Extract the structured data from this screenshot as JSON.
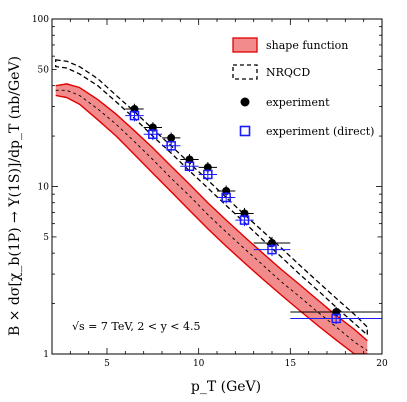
{
  "chart_data": {
    "type": "line",
    "title": "",
    "xlabel": "p_T   (GeV)",
    "ylabel": "B × dσ[χ_b(1P) → Υ(1S)]/dp_T   (nb/GeV)",
    "xlim": [
      2,
      20
    ],
    "ylim": [
      1,
      100
    ],
    "yscale": "log",
    "x_ticks": [
      5,
      10,
      15,
      20
    ],
    "y_ticks": [
      1,
      2,
      5,
      10,
      20,
      50,
      100
    ],
    "y_tick_labels": [
      "1",
      "",
      "5",
      "10",
      "",
      "50",
      "100"
    ],
    "annotation": "√s = 7 TeV, 2 < y < 4.5",
    "legend_position": "top-right",
    "colors": {
      "band_fill": "#f28c8c",
      "band_edge": "#e00000",
      "direct": "#1a1aff",
      "nrqcd": "#000000",
      "experiment": "#000000"
    },
    "series": [
      {
        "name": "shape function",
        "kind": "band",
        "x": [
          2.2,
          2.8,
          3.5,
          4.5,
          5.5,
          6.5,
          7.5,
          8.5,
          9.5,
          10.5,
          11.5,
          12.5,
          13.5,
          14.5,
          15.5,
          16.5,
          17.5,
          18.5,
          19.2
        ],
        "upper": [
          40,
          41,
          39,
          33,
          27,
          21.5,
          17,
          13.2,
          10.3,
          8.0,
          6.3,
          5.0,
          4.0,
          3.2,
          2.6,
          2.1,
          1.7,
          1.4,
          1.2
        ],
        "lower": [
          35,
          34,
          31,
          25,
          20,
          15.5,
          12,
          9.3,
          7.2,
          5.6,
          4.4,
          3.5,
          2.8,
          2.25,
          1.82,
          1.48,
          1.21,
          1.0,
          1.0
        ],
        "center": [
          37.5,
          37.5,
          35,
          29,
          23.5,
          18.5,
          14.5,
          11.2,
          8.8,
          6.8,
          5.35,
          4.25,
          3.4,
          2.7,
          2.2,
          1.78,
          1.45,
          1.18,
          1.05
        ]
      },
      {
        "name": "NRQCD",
        "kind": "dashed-band",
        "x": [
          2.2,
          2.8,
          3.5,
          4.5,
          5.5,
          6.5,
          7.5,
          8.5,
          9.5,
          10.5,
          11.5,
          12.5,
          13.5,
          14.5,
          15.5,
          16.5,
          17.5,
          18.5,
          19.2
        ],
        "upper": [
          57,
          56,
          52,
          44,
          35,
          28,
          22,
          17.5,
          13.8,
          10.9,
          8.6,
          6.8,
          5.4,
          4.3,
          3.4,
          2.7,
          2.15,
          1.72,
          1.45
        ],
        "lower": [
          52,
          51,
          47,
          40,
          32,
          25.5,
          20,
          15.8,
          12.4,
          9.8,
          7.7,
          6.1,
          4.8,
          3.8,
          3.0,
          2.4,
          1.9,
          1.52,
          1.3
        ]
      },
      {
        "name": "experiment",
        "kind": "points",
        "marker": "filled-circle",
        "x": [
          6.5,
          7.5,
          8.5,
          9.5,
          10.5,
          11.5,
          12.5,
          14.0,
          17.5
        ],
        "y": [
          29,
          22.5,
          19.5,
          14.5,
          13.0,
          9.4,
          6.9,
          4.6,
          1.78
        ],
        "x_err": [
          0.5,
          0.5,
          0.5,
          0.5,
          0.5,
          0.5,
          0.5,
          1.0,
          2.5
        ],
        "y_err": [
          2.2,
          1.7,
          1.5,
          1.1,
          1.0,
          0.75,
          0.55,
          0.4,
          0.13
        ]
      },
      {
        "name": "experiment (direct)",
        "kind": "points",
        "marker": "open-square",
        "x": [
          6.5,
          7.5,
          8.5,
          9.5,
          10.5,
          11.5,
          12.5,
          14.0,
          17.5
        ],
        "y": [
          26.5,
          20.5,
          17.5,
          13.2,
          11.8,
          8.6,
          6.3,
          4.2,
          1.63
        ],
        "x_err": [
          0.5,
          0.5,
          0.5,
          0.5,
          0.5,
          0.5,
          0.5,
          1.0,
          2.5
        ],
        "y_err": [
          2.0,
          1.6,
          1.4,
          1.0,
          0.9,
          0.68,
          0.5,
          0.36,
          0.12
        ]
      }
    ]
  }
}
